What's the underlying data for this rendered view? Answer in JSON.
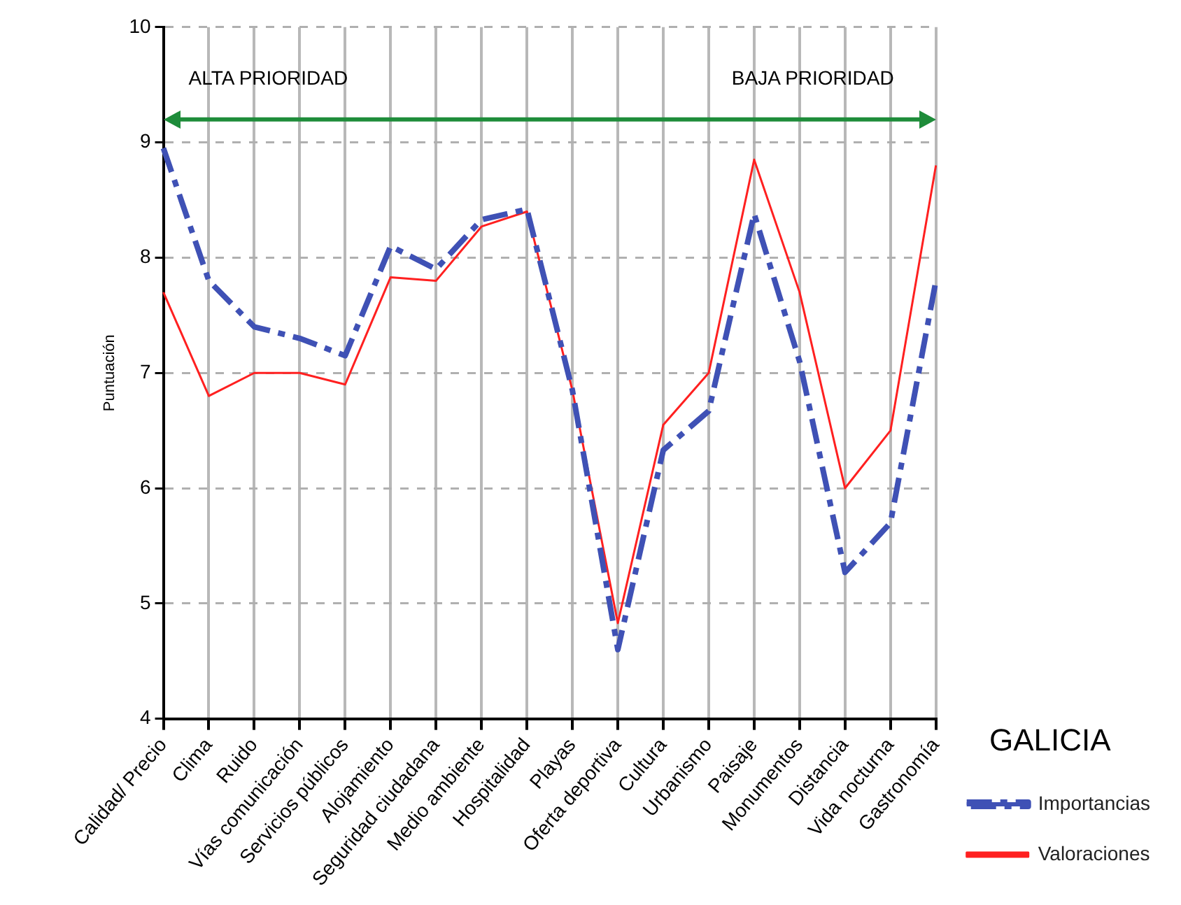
{
  "chart_data": {
    "type": "line",
    "ylabel": "Puntuación",
    "legend_title": "GALICIA",
    "categories": [
      "Calidad/ Precio",
      "Clima",
      "Ruido",
      "Vías comunicación",
      "Servicios públicos",
      "Alojamiento",
      "Seguridad ciudadana",
      "Medio ambiente",
      "Hospitalidad",
      "Playas",
      "Oferta deportiva",
      "Cultura",
      "Urbanismo",
      "Paisaje",
      "Monumentos",
      "Distancia",
      "Vida nocturna",
      "Gastronomía"
    ],
    "series": [
      {
        "name": "Importancias",
        "color": "#3f51b5",
        "line_style": "dashed",
        "values": [
          8.95,
          7.8,
          7.4,
          7.3,
          7.15,
          8.1,
          7.9,
          8.33,
          8.42,
          6.85,
          4.6,
          6.33,
          6.67,
          8.38,
          7.1,
          5.27,
          5.7,
          7.8
        ]
      },
      {
        "name": "Valoraciones",
        "color": "#ff2020",
        "line_style": "solid",
        "values": [
          7.7,
          6.8,
          7.0,
          7.0,
          6.9,
          7.83,
          7.8,
          8.27,
          8.4,
          6.85,
          4.83,
          6.55,
          7.0,
          8.85,
          7.7,
          6.0,
          6.5,
          8.8
        ]
      }
    ],
    "ref_lines": [
      {
        "axis": "y",
        "value": 9.2,
        "color": "#1e8c3a"
      }
    ],
    "ylim": [
      4,
      10
    ],
    "yticks": [
      4,
      5,
      6,
      7,
      8,
      9,
      10
    ],
    "grid": true,
    "legend": "right",
    "marker": "none",
    "annotations": [
      "ALTA PRIORIDAD",
      "BAJA PRIORIDAD"
    ]
  }
}
